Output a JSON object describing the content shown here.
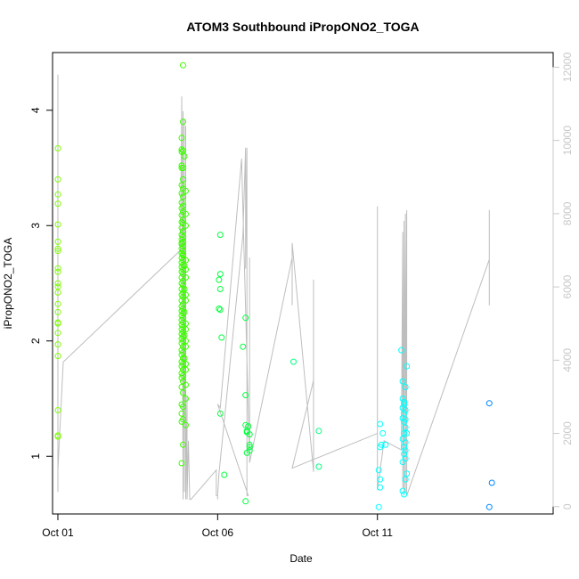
{
  "chart_data": {
    "type": "scatter",
    "title": "ATOM3 Southbound iPropONO2_TOGA",
    "xlabel": "Date",
    "ylabel": "iPropONO2_TOGA",
    "x_axis": {
      "type": "date",
      "range": [
        "2017-09-30T20:00",
        "2017-10-16T12:00"
      ],
      "ticks": [
        {
          "value": "2017-10-01T00:00",
          "label": "Oct 01"
        },
        {
          "value": "2017-10-06T00:00",
          "label": "Oct 06"
        },
        {
          "value": "2017-10-11T00:00",
          "label": "Oct 11"
        }
      ]
    },
    "y_axis": {
      "range": [
        0.5,
        4.5
      ],
      "ticks": [
        1,
        2,
        3,
        4
      ]
    },
    "y2_axis": {
      "range": [
        -200,
        12400
      ],
      "ticks": [
        0,
        2000,
        4000,
        6000,
        8000,
        10000,
        12000
      ],
      "color": "#c8c8c8"
    },
    "grid": false,
    "series": [
      {
        "kind": "points",
        "color": "#7fff00",
        "x": [
          "2017-10-01T00:00",
          "2017-10-01T00:00",
          "2017-10-01T00:00",
          "2017-10-01T00:00",
          "2017-10-01T00:00",
          "2017-10-01T00:00",
          "2017-10-01T00:00",
          "2017-10-01T00:00",
          "2017-10-01T00:00",
          "2017-10-01T00:00",
          "2017-10-01T00:00",
          "2017-10-01T00:00",
          "2017-10-01T00:00",
          "2017-10-01T00:00",
          "2017-10-01T00:00",
          "2017-10-01T00:00",
          "2017-10-01T00:00",
          "2017-10-01T00:00",
          "2017-10-01T00:00",
          "2017-10-01T00:00",
          "2017-10-01T00:00",
          "2017-10-01T00:00",
          "2017-10-01T00:00"
        ],
        "y": [
          3.67,
          3.4,
          3.27,
          3.19,
          3.01,
          2.86,
          2.8,
          2.78,
          2.63,
          2.6,
          2.5,
          2.47,
          2.42,
          2.32,
          2.16,
          2.15,
          2.07,
          1.97,
          1.87,
          1.4,
          1.18,
          1.17,
          2.25
        ]
      },
      {
        "kind": "points",
        "color": "#3cff00",
        "x": [
          "2017-10-04T22:00",
          "2017-10-04T22:00",
          "2017-10-04T21:00",
          "2017-10-04T21:00",
          "2017-10-04T22:00",
          "2017-10-04T21:00",
          "2017-10-04T21:00",
          "2017-10-04T22:00",
          "2017-10-04T21:00",
          "2017-10-04T22:00",
          "2017-10-04T21:00",
          "2017-10-04T22:00",
          "2017-10-04T21:00",
          "2017-10-04T22:00",
          "2017-10-04T21:00",
          "2017-10-04T22:00",
          "2017-10-04T21:00",
          "2017-10-04T22:00",
          "2017-10-04T21:00",
          "2017-10-04T22:00",
          "2017-10-04T21:00",
          "2017-10-04T22:00",
          "2017-10-04T21:00",
          "2017-10-04T22:00",
          "2017-10-04T21:00",
          "2017-10-04T22:00",
          "2017-10-04T21:00",
          "2017-10-04T22:00",
          "2017-10-04T21:00",
          "2017-10-04T22:00",
          "2017-10-04T21:00",
          "2017-10-04T22:00",
          "2017-10-04T21:00",
          "2017-10-04T22:00",
          "2017-10-04T21:00",
          "2017-10-04T22:00",
          "2017-10-04T21:00",
          "2017-10-04T22:00",
          "2017-10-04T21:00",
          "2017-10-04T22:00",
          "2017-10-04T21:00",
          "2017-10-04T22:00",
          "2017-10-04T21:00",
          "2017-10-04T22:00",
          "2017-10-04T21:00",
          "2017-10-04T22:00",
          "2017-10-04T21:00",
          "2017-10-04T22:00",
          "2017-10-04T21:00",
          "2017-10-04T22:00",
          "2017-10-04T21:00",
          "2017-10-04T22:00",
          "2017-10-04T21:00",
          "2017-10-04T22:00",
          "2017-10-04T21:00",
          "2017-10-04T22:00",
          "2017-10-04T21:00",
          "2017-10-04T22:00",
          "2017-10-04T21:00",
          "2017-10-04T22:00",
          "2017-10-04T21:00",
          "2017-10-04T22:00",
          "2017-10-04T21:00",
          "2017-10-04T22:00",
          "2017-10-04T21:00",
          "2017-10-04T22:00",
          "2017-10-04T21:00",
          "2017-10-04T22:00",
          "2017-10-04T21:00",
          "2017-10-04T22:00",
          "2017-10-04T21:00",
          "2017-10-04T22:00",
          "2017-10-04T21:00",
          "2017-10-04T22:00",
          "2017-10-04T21:00",
          "2017-10-04T22:00",
          "2017-10-04T21:00",
          "2017-10-04T22:00",
          "2017-10-04T21:00",
          "2017-10-04T22:00",
          "2017-10-04T21:00",
          "2017-10-04T22:00",
          "2017-10-04T21:00",
          "2017-10-04T22:00",
          "2017-10-04T21:00",
          "2017-10-04T22:00",
          "2017-10-04T21:00",
          "2017-10-04T22:00",
          "2017-10-04T21:00",
          "2017-10-04T22:00",
          "2017-10-04T21:00",
          "2017-10-04T22:00",
          "2017-10-04T21:00",
          "2017-10-04T22:00",
          "2017-10-04T23:00",
          "2017-10-05T00:00",
          "2017-10-04T23:00",
          "2017-10-05T00:00",
          "2017-10-04T23:00",
          "2017-10-05T00:00",
          "2017-10-04T23:00",
          "2017-10-05T00:00",
          "2017-10-04T23:00",
          "2017-10-05T00:00",
          "2017-10-04T23:00",
          "2017-10-05T00:00",
          "2017-10-05T00:00",
          "2017-10-05T00:00",
          "2017-10-05T00:00",
          "2017-10-05T00:00",
          "2017-10-05T00:00",
          "2017-10-05T00:00",
          "2017-10-05T00:00",
          "2017-10-05T00:00",
          "2017-10-05T00:00",
          "2017-10-05T00:00",
          "2017-10-05T00:00"
        ],
        "y": [
          4.39,
          3.9,
          3.76,
          3.66,
          3.65,
          3.64,
          3.52,
          3.5,
          3.5,
          3.4,
          3.35,
          3.32,
          3.28,
          3.25,
          3.2,
          3.17,
          3.15,
          3.12,
          3.09,
          3.05,
          3.03,
          3.02,
          2.98,
          2.95,
          2.92,
          2.9,
          2.88,
          2.86,
          2.84,
          2.82,
          2.8,
          2.78,
          2.76,
          2.74,
          2.72,
          2.7,
          2.68,
          2.66,
          2.64,
          2.62,
          2.6,
          2.58,
          2.55,
          2.52,
          2.5,
          2.48,
          2.45,
          2.42,
          2.4,
          2.38,
          2.35,
          2.32,
          2.3,
          2.28,
          2.26,
          2.24,
          2.22,
          2.2,
          2.18,
          2.16,
          2.14,
          2.12,
          2.1,
          2.08,
          2.06,
          2.04,
          2.02,
          2.0,
          1.98,
          1.95,
          1.92,
          1.9,
          1.88,
          1.85,
          1.82,
          1.8,
          1.78,
          1.75,
          1.72,
          1.7,
          1.68,
          1.65,
          1.6,
          1.55,
          1.45,
          1.43,
          1.37,
          1.32,
          1.3,
          1.1,
          0.94,
          2.95,
          2.85,
          2.75,
          2.65,
          2.55,
          2.45,
          2.35,
          2.25,
          2.15,
          2.05,
          1.95,
          1.85,
          1.75,
          3.6,
          3.3,
          3.0,
          2.7,
          2.4,
          2.1,
          1.8,
          1.5,
          1.27,
          1.62,
          2.62,
          3.1,
          2.0
        ]
      },
      {
        "kind": "points",
        "color": "#00ff3c",
        "x": [
          "2017-10-06T02:00",
          "2017-10-06T02:00",
          "2017-10-06T01:00",
          "2017-10-06T02:00",
          "2017-10-06T01:00",
          "2017-10-06T02:00",
          "2017-10-06T03:00",
          "2017-10-06T02:00",
          "2017-10-06T05:00",
          "2017-10-06T19:00",
          "2017-10-06T21:00",
          "2017-10-06T21:00",
          "2017-10-06T21:00",
          "2017-10-06T22:00",
          "2017-10-06T22:00",
          "2017-10-06T23:00",
          "2017-10-07T00:00",
          "2017-10-07T00:00",
          "2017-10-07T00:00",
          "2017-10-07T00:00",
          "2017-10-06T22:00",
          "2017-10-06T21:00"
        ],
        "y": [
          2.92,
          2.58,
          2.53,
          2.45,
          2.28,
          2.27,
          2.03,
          1.37,
          0.84,
          1.95,
          2.2,
          1.53,
          1.27,
          1.22,
          1.21,
          1.26,
          1.19,
          1.1,
          1.08,
          1.05,
          1.03,
          0.61
        ]
      },
      {
        "kind": "points",
        "color": "#00ff7f",
        "x": [
          "2017-10-08T09:00",
          "2017-10-09T04:00",
          "2017-10-09T04:00"
        ],
        "y": [
          1.82,
          1.22,
          0.91
        ]
      },
      {
        "kind": "points",
        "color": "#00ffff",
        "x": [
          "2017-10-11T02:00",
          "2017-10-11T04:00",
          "2017-10-11T03:00",
          "2017-10-11T06:00",
          "2017-10-11T02:00",
          "2017-10-11T01:00",
          "2017-10-11T02:00",
          "2017-10-11T02:00",
          "2017-10-11T01:00",
          "2017-10-11T18:00",
          "2017-10-11T19:00",
          "2017-10-11T19:00",
          "2017-10-11T21:00",
          "2017-10-11T20:00",
          "2017-10-11T20:00",
          "2017-10-11T19:00",
          "2017-10-11T21:00",
          "2017-10-11T20:00",
          "2017-10-11T19:00",
          "2017-10-11T20:00",
          "2017-10-11T21:00",
          "2017-10-11T20:00",
          "2017-10-11T19:00",
          "2017-10-11T21:00",
          "2017-10-11T20:00",
          "2017-10-11T21:00",
          "2017-10-11T20:00",
          "2017-10-11T21:00",
          "2017-10-11T19:00",
          "2017-10-11T22:00",
          "2017-10-11T21:00",
          "2017-10-11T22:00",
          "2017-10-11T22:00",
          "2017-10-11T21:00",
          "2017-10-11T19:00",
          "2017-10-11T20:00"
        ],
        "y": [
          1.28,
          1.2,
          1.1,
          1.1,
          1.08,
          0.88,
          0.8,
          0.73,
          0.56,
          1.92,
          1.65,
          1.5,
          1.6,
          1.47,
          1.45,
          1.42,
          1.4,
          1.37,
          1.33,
          1.3,
          1.25,
          1.2,
          1.15,
          1.12,
          1.08,
          1.05,
          1.02,
          0.98,
          0.95,
          1.78,
          1.32,
          1.2,
          0.85,
          0.8,
          0.7,
          0.67
        ]
      },
      {
        "kind": "points",
        "color": "#0086ff",
        "x": [
          "2017-10-14T12:00",
          "2017-10-14T12:00",
          "2017-10-14T14:00"
        ],
        "y": [
          1.46,
          0.56,
          0.77
        ]
      },
      {
        "kind": "line",
        "axis": "y2",
        "color": "#bebebe",
        "x": [
          "2017-10-01T00:00",
          "2017-10-01T00:00",
          "2017-10-01T00:00",
          "2017-10-01T00:00",
          "2017-10-01T04:00",
          "2017-10-04T20:00",
          "2017-10-04T21:00",
          "2017-10-04T21:00",
          "2017-10-04T21:00",
          "2017-10-04T22:00",
          "2017-10-04T22:00",
          "2017-10-04T22:00",
          "2017-10-04T22:00",
          "2017-10-04T22:00",
          "2017-10-04T23:00",
          "2017-10-04T23:00",
          "2017-10-04T23:00",
          "2017-10-04T23:00",
          "2017-10-04T23:00",
          "2017-10-05T00:00",
          "2017-10-05T00:00",
          "2017-10-05T00:00",
          "2017-10-05T00:00",
          "2017-10-05T00:00",
          "2017-10-05T00:00",
          "2017-10-05T01:00",
          "2017-10-05T01:00",
          "2017-10-05T02:00",
          "2017-10-05T03:00",
          "2017-10-05T04:00",
          "2017-10-05T23:00",
          "2017-10-05T23:00",
          "2017-10-06T00:00",
          "2017-10-06T00:00",
          "2017-10-06T00:00",
          "2017-10-06T01:00",
          "2017-10-06T19:00",
          "2017-10-06T21:00",
          "2017-10-06T21:00",
          "2017-10-06T22:00",
          "2017-10-06T22:00",
          "2017-10-06T22:00",
          "2017-10-06T23:00",
          "2017-10-06T00:00",
          "2017-10-06T02:00",
          "2017-10-06T18:00",
          "2017-10-07T00:00",
          "2017-10-07T00:00",
          "2017-10-07T00:00",
          "2017-10-08T08:00",
          "2017-10-08T08:00",
          "2017-10-08T08:00",
          "2017-10-09T00:00",
          "2017-10-09T00:00",
          "2017-10-09T00:00",
          "2017-10-08T08:00",
          "2017-10-11T00:00",
          "2017-10-11T00:00",
          "2017-10-11T00:00",
          "2017-10-11T00:00",
          "2017-10-11T00:00",
          "2017-10-11T05:00",
          "2017-10-11T18:00",
          "2017-10-11T19:00",
          "2017-10-11T19:00",
          "2017-10-11T19:00",
          "2017-10-11T20:00",
          "2017-10-11T20:00",
          "2017-10-11T20:00",
          "2017-10-11T20:00",
          "2017-10-11T21:00",
          "2017-10-11T21:00",
          "2017-10-11T21:00",
          "2017-10-11T22:00",
          "2017-10-11T22:00",
          "2017-10-11T22:00",
          "2017-10-14T12:00",
          "2017-10-14T12:00",
          "2017-10-14T12:00"
        ],
        "y": [
          400,
          11800,
          9500,
          1000,
          3950,
          7000,
          11000,
          9000,
          11200,
          300,
          10500,
          8000,
          10800,
          200,
          9800,
          400,
          10600,
          1000,
          9000,
          500,
          10400,
          300,
          9500,
          700,
          200,
          3000,
          200,
          1800,
          200,
          200,
          1000,
          300,
          300,
          200,
          300,
          900,
          7400,
          9800,
          6500,
          9800,
          1000,
          300,
          300,
          2800,
          2700,
          9500,
          1300,
          6800,
          1200,
          6800,
          5500,
          7200,
          950,
          6200,
          3450,
          1050,
          2000,
          8200,
          1350,
          7900,
          450,
          1800,
          1550,
          7500,
          500,
          7300,
          300,
          7800,
          5000,
          2200,
          7700,
          8000,
          400,
          8100,
          2600,
          300,
          6750,
          5500,
          8100
        ]
      }
    ]
  }
}
